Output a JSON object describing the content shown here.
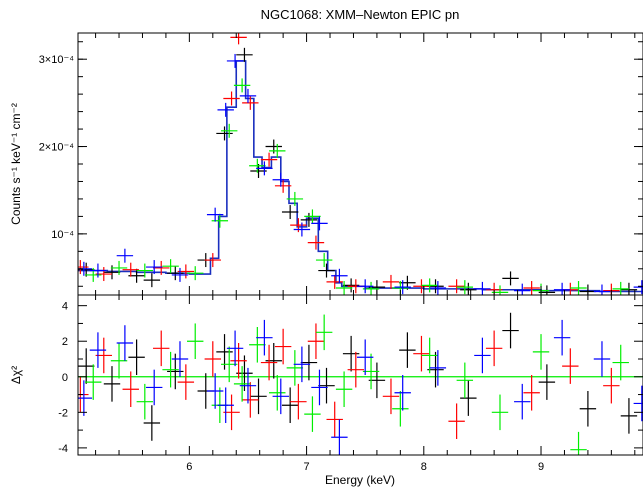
{
  "chart_data": [
    {
      "type": "line",
      "title": "NGC1068: XMM–Newton EPIC pn",
      "ylabel": "Counts s⁻¹ keV⁻¹ cm⁻²",
      "xlim": [
        5.05,
        9.87
      ],
      "ylim": [
        3e-05,
        0.00033
      ],
      "ytick_labels": [
        {
          "value": 0.0001,
          "label": "10⁻⁴"
        },
        {
          "value": 0.0002,
          "label": "2×10⁻⁴"
        },
        {
          "value": 0.0003,
          "label": "3×10⁻⁴"
        }
      ],
      "grid": false,
      "legend": "none",
      "colors": {
        "data_1": "#000000",
        "data_2": "#ff0000",
        "data_3": "#00ee00",
        "data_4": "#0000ff",
        "model": "#1a2fbf"
      },
      "model": {
        "x": [
          5.05,
          5.3,
          5.55,
          5.8,
          6.0,
          6.18,
          6.25,
          6.32,
          6.4,
          6.48,
          6.55,
          6.62,
          6.7,
          6.78,
          6.85,
          6.92,
          7.0,
          7.1,
          7.18,
          7.25,
          7.3,
          7.5,
          8.0,
          8.5,
          9.0,
          9.5,
          9.87
        ],
        "y": [
          5.8e-05,
          5.7e-05,
          5.6e-05,
          5.5e-05,
          5.4e-05,
          7.2e-05,
          0.00012,
          0.000245,
          0.000298,
          0.000255,
          0.000188,
          0.000176,
          0.000188,
          0.00016,
          0.000135,
          0.000108,
          0.000118,
          8e-05,
          5.8e-05,
          4.4e-05,
          4e-05,
          3.8e-05,
          3.7e-05,
          3.6e-05,
          3.5e-05,
          3.4e-05,
          3.4e-05
        ]
      },
      "series": [
        {
          "color": "#000000",
          "x": [
            5.12,
            5.34,
            5.55,
            5.68,
            5.88,
            6.14,
            6.3,
            6.47,
            6.59,
            6.72,
            6.86,
            7.02,
            7.17,
            7.38,
            7.6,
            7.86,
            8.1,
            8.38,
            8.74,
            9.05,
            9.4,
            9.75
          ],
          "y": [
            5.9e-05,
            5.6e-05,
            5.2e-05,
            4.7e-05,
            5.5e-05,
            7e-05,
            0.000215,
            0.000305,
            0.000172,
            0.0002,
            0.000125,
            0.000116,
            5.8e-05,
            4.1e-05,
            3.9e-05,
            4.4e-05,
            4e-05,
            3.6e-05,
            4.9e-05,
            3.3e-05,
            3.4e-05,
            3.6e-05
          ],
          "xerr": 0.07,
          "yerr": 8e-06
        },
        {
          "color": "#ff0000",
          "x": [
            5.07,
            5.27,
            5.5,
            5.76,
            5.97,
            6.2,
            6.36,
            6.42,
            6.52,
            6.68,
            6.8,
            6.93,
            7.08,
            7.24,
            7.42,
            7.72,
            7.98,
            8.28,
            8.6,
            8.92,
            9.25,
            9.6
          ],
          "y": [
            6.2e-05,
            5.4e-05,
            5.9e-05,
            6.1e-05,
            5.7e-05,
            7e-05,
            0.000255,
            0.000325,
            0.00025,
            0.000185,
            0.000155,
            0.00011,
            9e-05,
            4.5e-05,
            4e-05,
            4.5e-05,
            4e-05,
            4e-05,
            3.6e-05,
            3.8e-05,
            3.6e-05,
            3.5e-05
          ],
          "xerr": 0.07,
          "yerr": 8e-06
        },
        {
          "color": "#00ee00",
          "x": [
            5.18,
            5.4,
            5.62,
            5.84,
            6.05,
            6.26,
            6.34,
            6.45,
            6.58,
            6.75,
            6.9,
            7.05,
            7.15,
            7.32,
            7.55,
            7.8,
            8.05,
            8.35,
            8.65,
            9.0,
            9.32,
            9.68
          ],
          "y": [
            5.3e-05,
            6.1e-05,
            5.8e-05,
            6.3e-05,
            5.5e-05,
            0.000115,
            0.000218,
            0.00027,
            0.000178,
            0.000195,
            0.00014,
            0.00012,
            7e-05,
            3.8e-05,
            3.7e-05,
            3.8e-05,
            4.1e-05,
            3.9e-05,
            3.3e-05,
            3.5e-05,
            3.8e-05,
            3.7e-05
          ],
          "xerr": 0.07,
          "yerr": 8e-06
        },
        {
          "color": "#0000ff",
          "x": [
            5.1,
            5.22,
            5.45,
            5.7,
            5.92,
            6.22,
            6.31,
            6.39,
            6.5,
            6.64,
            6.78,
            6.96,
            7.11,
            7.28,
            7.5,
            7.82,
            8.12,
            8.5,
            8.84,
            9.18,
            9.52,
            9.86
          ],
          "y": [
            6e-05,
            5.8e-05,
            7.5e-05,
            6.2e-05,
            5.3e-05,
            0.000122,
            0.000242,
            0.000298,
            0.000258,
            0.000175,
            0.000162,
            0.000105,
            0.000112,
            5.2e-05,
            4e-05,
            3.9e-05,
            3.8e-05,
            3.7e-05,
            3.5e-05,
            3.6e-05,
            3.4e-05,
            3.9e-05
          ],
          "xerr": 0.07,
          "yerr": 8e-06
        }
      ]
    },
    {
      "type": "scatter",
      "xlabel": "Energy (keV)",
      "ylabel": "Δχ²",
      "xlim": [
        5.05,
        9.87
      ],
      "ylim": [
        -4.4,
        4.6
      ],
      "x_ticks": [
        6,
        7,
        8,
        9
      ],
      "y_ticks": [
        -4,
        -2,
        0,
        2,
        4
      ],
      "grid": false,
      "legend": "none",
      "zero_line_color": "#00ee00",
      "series": [
        {
          "color": "#000000",
          "x": [
            5.12,
            5.34,
            5.55,
            5.68,
            5.88,
            6.14,
            6.3,
            6.47,
            6.59,
            6.72,
            6.86,
            7.02,
            7.17,
            7.38,
            7.6,
            7.86,
            8.1,
            8.38,
            8.74,
            9.05,
            9.4,
            9.75
          ],
          "y": [
            0.6,
            -0.4,
            1.1,
            -2.6,
            0.3,
            -0.8,
            1.4,
            0.2,
            -1.1,
            0.9,
            -1.6,
            0.8,
            -0.5,
            1.3,
            -0.2,
            1.5,
            0.4,
            -1.2,
            2.6,
            -0.3,
            -1.8,
            -2.2
          ],
          "xerr": 0.07,
          "yerr": 1.0
        },
        {
          "color": "#ff0000",
          "x": [
            5.07,
            5.27,
            5.5,
            5.76,
            5.97,
            6.2,
            6.36,
            6.42,
            6.52,
            6.68,
            6.8,
            6.93,
            7.08,
            7.24,
            7.42,
            7.72,
            7.98,
            8.28,
            8.6,
            8.92,
            9.25,
            9.6
          ],
          "y": [
            -1.0,
            1.2,
            -0.7,
            1.6,
            -0.3,
            1.0,
            -2.0,
            0.9,
            -1.3,
            0.8,
            1.7,
            -1.4,
            2.0,
            -2.4,
            0.4,
            -1.1,
            1.3,
            -2.5,
            1.6,
            -0.9,
            0.6,
            -0.5
          ],
          "xerr": 0.07,
          "yerr": 1.0
        },
        {
          "color": "#00ee00",
          "x": [
            5.18,
            5.4,
            5.62,
            5.84,
            6.05,
            6.26,
            6.34,
            6.45,
            6.58,
            6.75,
            6.9,
            7.05,
            7.15,
            7.32,
            7.55,
            7.8,
            8.05,
            8.35,
            8.65,
            9.0,
            9.32,
            9.68
          ],
          "y": [
            -0.3,
            0.9,
            -1.4,
            0.4,
            2.0,
            -1.6,
            0.7,
            -0.4,
            1.8,
            -0.9,
            0.5,
            -2.1,
            2.5,
            -0.7,
            0.3,
            -1.8,
            1.2,
            -0.2,
            -2.0,
            1.4,
            -4.1,
            0.8
          ],
          "xerr": 0.07,
          "yerr": 1.0
        },
        {
          "color": "#0000ff",
          "x": [
            5.1,
            5.22,
            5.45,
            5.7,
            5.92,
            6.22,
            6.31,
            6.39,
            6.5,
            6.64,
            6.78,
            6.96,
            7.11,
            7.28,
            7.5,
            7.82,
            8.12,
            8.5,
            8.84,
            9.18,
            9.52,
            9.86
          ],
          "y": [
            -1.2,
            1.5,
            1.9,
            -0.6,
            1.0,
            -0.8,
            -1.6,
            1.6,
            -0.5,
            2.2,
            -1.1,
            0.7,
            -0.6,
            -3.4,
            1.1,
            -0.9,
            0.5,
            1.2,
            -1.4,
            2.2,
            1.0,
            -1.5
          ],
          "xerr": 0.07,
          "yerr": 1.0
        }
      ]
    }
  ]
}
